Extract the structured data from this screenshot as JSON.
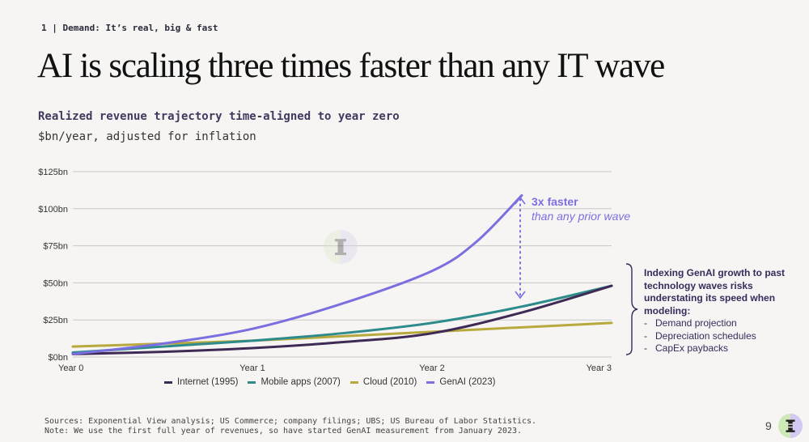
{
  "header": {
    "section_label": "1 | Demand: It’s real, big & fast",
    "title": "AI is scaling three times faster than any IT wave"
  },
  "chart": {
    "title": "Realized revenue trajectory time-aligned to year zero",
    "subtitle": "$bn/year, adjusted for inflation"
  },
  "annotation": {
    "main": "3x faster",
    "sub": "than any prior wave"
  },
  "side_note": {
    "heading": "Indexing GenAI growth to past technology waves risks understating its speed when modeling:",
    "items": [
      "Demand projection",
      "Depreciation schedules",
      "CapEx paybacks"
    ]
  },
  "footer": {
    "sources": "Sources: Exponential View analysis; US Commerce; company filings; UBS; US Bureau of Labor Statistics.",
    "note": "Note: We use the first full year of revenues, so have started GenAI measurement from January 2023."
  },
  "page_number": "9",
  "colors": {
    "internet": "#3f2a56",
    "mobile": "#2e8b8b",
    "cloud": "#b8a93e",
    "genai": "#7b6fe0",
    "grid": "#c8c8c8"
  },
  "chart_data": {
    "type": "line",
    "xlabel": "",
    "ylabel": "",
    "x_ticks": [
      0,
      1,
      2,
      3
    ],
    "x_tick_labels": [
      "Year 0",
      "Year 1",
      "Year 2",
      "Year 3"
    ],
    "xlim": [
      0,
      3
    ],
    "y_ticks": [
      0,
      25,
      50,
      75,
      100,
      125
    ],
    "y_tick_labels": [
      "$0bn",
      "$25bn",
      "$50bn",
      "$75bn",
      "$100bn",
      "$125bn"
    ],
    "ylim": [
      0,
      125
    ],
    "grid": "horizontal",
    "legend_position": "bottom",
    "series": [
      {
        "name": "Internet (1995)",
        "color_key": "internet",
        "x": [
          0,
          0.5,
          1,
          1.5,
          2,
          2.5,
          3
        ],
        "y": [
          2,
          3.5,
          6,
          10,
          16,
          30,
          48
        ]
      },
      {
        "name": "Mobile apps (2007)",
        "color_key": "mobile",
        "x": [
          0,
          0.5,
          1,
          1.5,
          2,
          2.5,
          3
        ],
        "y": [
          3,
          7,
          11,
          16,
          23,
          34,
          48
        ]
      },
      {
        "name": "Cloud (2010)",
        "color_key": "cloud",
        "x": [
          0,
          0.5,
          1,
          1.5,
          2,
          2.5,
          3
        ],
        "y": [
          7,
          9,
          11,
          14,
          17,
          20,
          23
        ]
      },
      {
        "name": "GenAI (2023)",
        "color_key": "genai",
        "x": [
          0,
          0.5,
          1,
          1.5,
          2,
          2.25,
          2.5
        ],
        "y": [
          2,
          9,
          19,
          36,
          58,
          78,
          109
        ]
      }
    ]
  }
}
